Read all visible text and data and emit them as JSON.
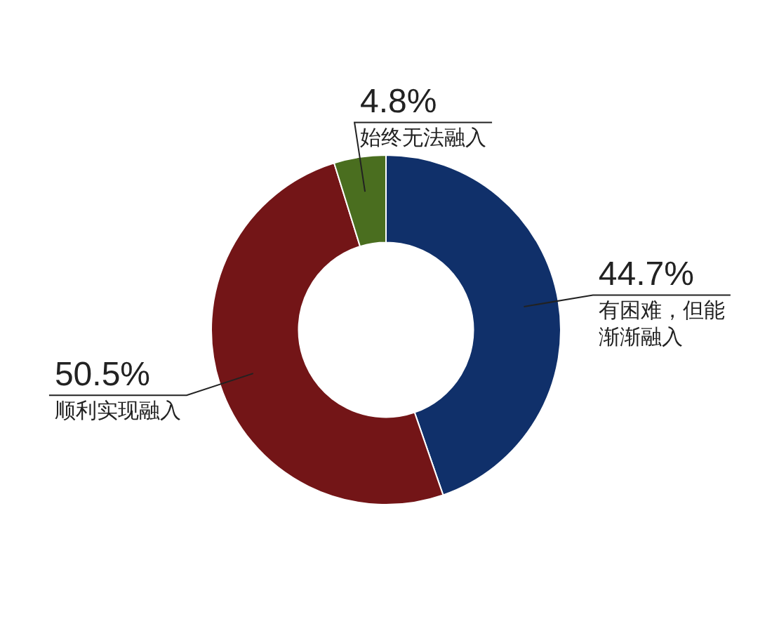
{
  "chart_data": {
    "type": "donut",
    "categories": [
      "有困难，但能渐渐融入",
      "顺利实现融入",
      "始终无法融入"
    ],
    "values": [
      44.7,
      50.5,
      4.8
    ],
    "colors": [
      "#10306a",
      "#731517",
      "#4a6e1f"
    ],
    "value_labels": [
      "44.7%",
      "50.5%",
      "4.8%"
    ]
  }
}
